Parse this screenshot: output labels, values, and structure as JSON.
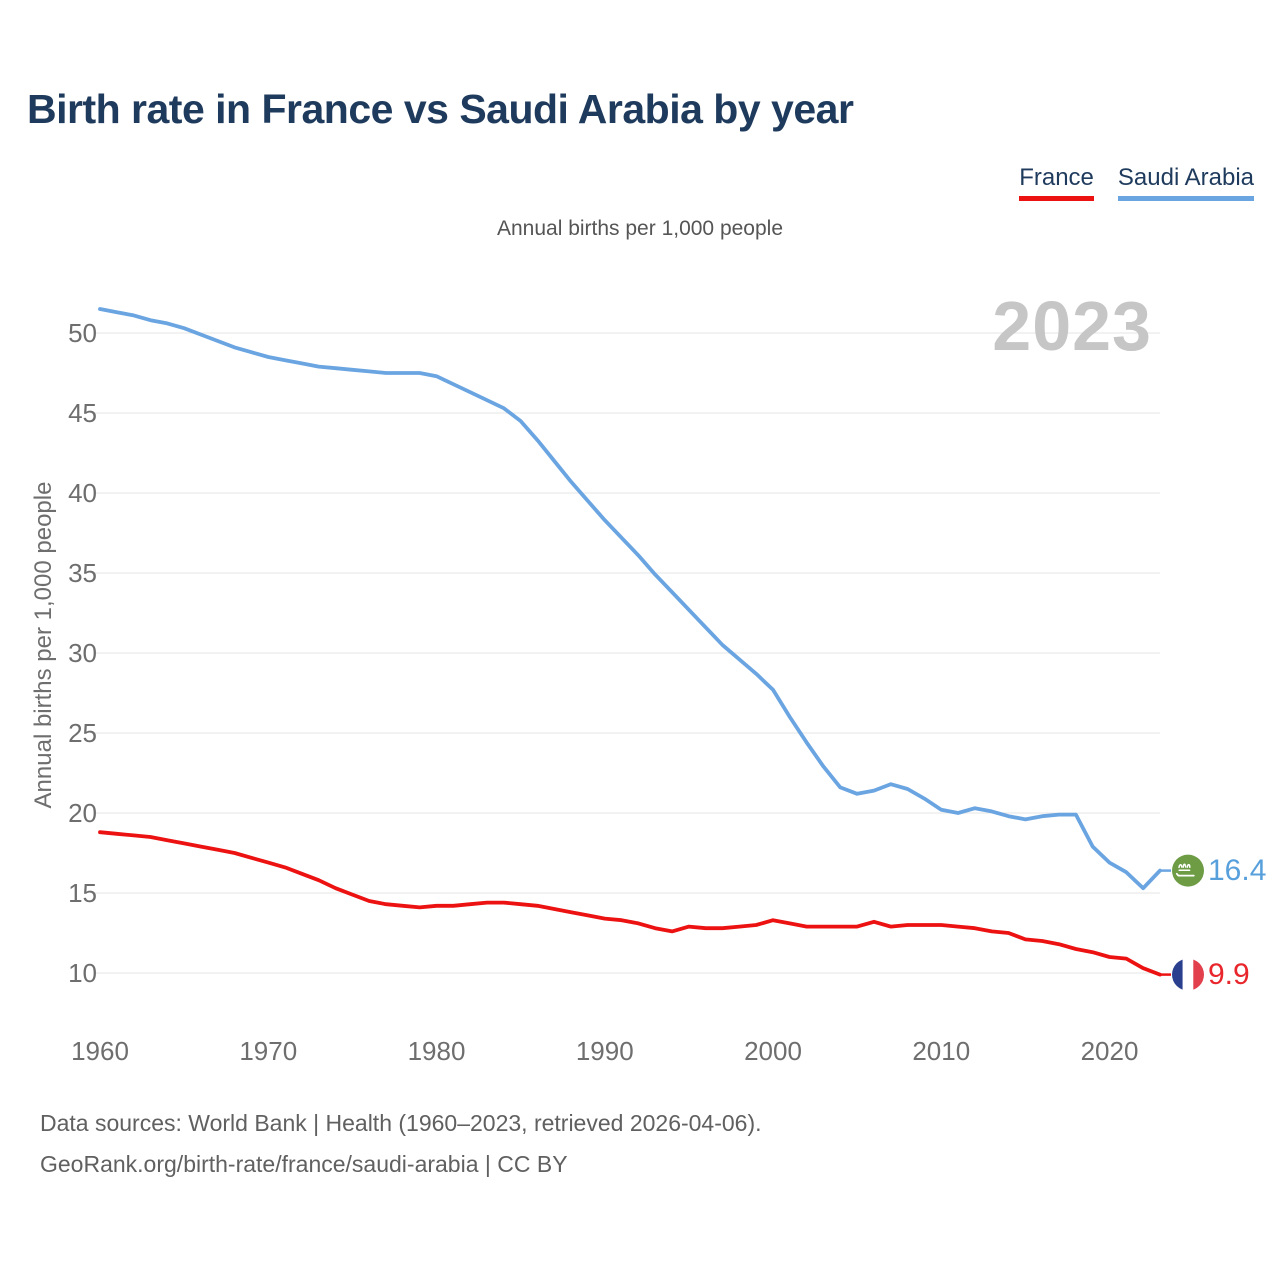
{
  "page": {
    "title": "Birth rate in France vs Saudi Arabia by year",
    "subtitle": "Annual births per 1,000 people",
    "watermark_year": "2023",
    "footer_line1": "Data sources: World Bank | Health (1960–2023, retrieved 2026-04-06).",
    "footer_line2": "GeoRank.org/birth-rate/france/saudi-arabia | CC BY"
  },
  "colors": {
    "title_navy": "#1e3a5c",
    "gridline": "#e9e9e9",
    "tick_gray": "#6e6e6e",
    "watermark_gray": "#c6c6c6",
    "france_red": "#ed1212",
    "saudi_blue": "#6aa5e2",
    "france_label_red": "#e8262b",
    "saudi_label_blue": "#58a0dc",
    "saudi_flag_green": "#6d9c45",
    "france_flag_blue": "#2b3f8f",
    "france_flag_red": "#e2404d"
  },
  "chart_data": {
    "type": "line",
    "title": "Birth rate in France vs Saudi Arabia by year",
    "subtitle": "Annual births per 1,000 people",
    "xlabel": "",
    "ylabel": "Annual births per 1,000 people",
    "grid": "horizontal",
    "legend_position": "top-right",
    "xlim": [
      1960,
      2023
    ],
    "ylim": [
      9,
      52.5
    ],
    "xticks": [
      1960,
      1970,
      1980,
      1990,
      2000,
      2010,
      2020
    ],
    "yticks": [
      10,
      15,
      20,
      25,
      30,
      35,
      40,
      45,
      50
    ],
    "x": [
      1960,
      1961,
      1962,
      1963,
      1964,
      1965,
      1966,
      1967,
      1968,
      1969,
      1970,
      1971,
      1972,
      1973,
      1974,
      1975,
      1976,
      1977,
      1978,
      1979,
      1980,
      1981,
      1982,
      1983,
      1984,
      1985,
      1986,
      1987,
      1988,
      1989,
      1990,
      1991,
      1992,
      1993,
      1994,
      1995,
      1996,
      1997,
      1998,
      1999,
      2000,
      2001,
      2002,
      2003,
      2004,
      2005,
      2006,
      2007,
      2008,
      2009,
      2010,
      2011,
      2012,
      2013,
      2014,
      2015,
      2016,
      2017,
      2018,
      2019,
      2020,
      2021,
      2022,
      2023
    ],
    "series": [
      {
        "id": "france",
        "name": "France",
        "color": "#ed1212",
        "end_value": 9.9,
        "end_label": "9.9",
        "end_label_color": "#e8262b",
        "flag_icon": "france-flag-icon",
        "values": [
          18.8,
          18.7,
          18.6,
          18.5,
          18.3,
          18.1,
          17.9,
          17.7,
          17.5,
          17.2,
          16.9,
          16.6,
          16.2,
          15.8,
          15.3,
          14.9,
          14.5,
          14.3,
          14.2,
          14.1,
          14.2,
          14.2,
          14.3,
          14.4,
          14.4,
          14.3,
          14.2,
          14.0,
          13.8,
          13.6,
          13.4,
          13.3,
          13.1,
          12.8,
          12.6,
          12.9,
          12.8,
          12.8,
          12.9,
          13.0,
          13.3,
          13.1,
          12.9,
          12.9,
          12.9,
          12.9,
          13.2,
          12.9,
          13.0,
          13.0,
          13.0,
          12.9,
          12.8,
          12.6,
          12.5,
          12.1,
          12.0,
          11.8,
          11.5,
          11.3,
          11.0,
          10.9,
          10.3,
          9.9
        ]
      },
      {
        "id": "saudi-arabia",
        "name": "Saudi Arabia",
        "color": "#6aa5e2",
        "end_value": 16.4,
        "end_label": "16.4",
        "end_label_color": "#58a0dc",
        "flag_icon": "saudi-arabia-flag-icon",
        "values": [
          51.5,
          51.3,
          51.1,
          50.8,
          50.6,
          50.3,
          49.9,
          49.5,
          49.1,
          48.8,
          48.5,
          48.3,
          48.1,
          47.9,
          47.8,
          47.7,
          47.6,
          47.5,
          47.5,
          47.5,
          47.3,
          46.8,
          46.3,
          45.8,
          45.3,
          44.5,
          43.3,
          42.0,
          40.7,
          39.5,
          38.3,
          37.2,
          36.1,
          34.9,
          33.8,
          32.7,
          31.6,
          30.5,
          29.6,
          28.7,
          27.7,
          26.0,
          24.4,
          22.9,
          21.6,
          21.2,
          21.4,
          21.8,
          21.5,
          20.9,
          20.2,
          20.0,
          20.3,
          20.1,
          19.8,
          19.6,
          19.8,
          19.9,
          19.9,
          17.9,
          16.9,
          16.3,
          15.3,
          16.4
        ]
      }
    ]
  }
}
